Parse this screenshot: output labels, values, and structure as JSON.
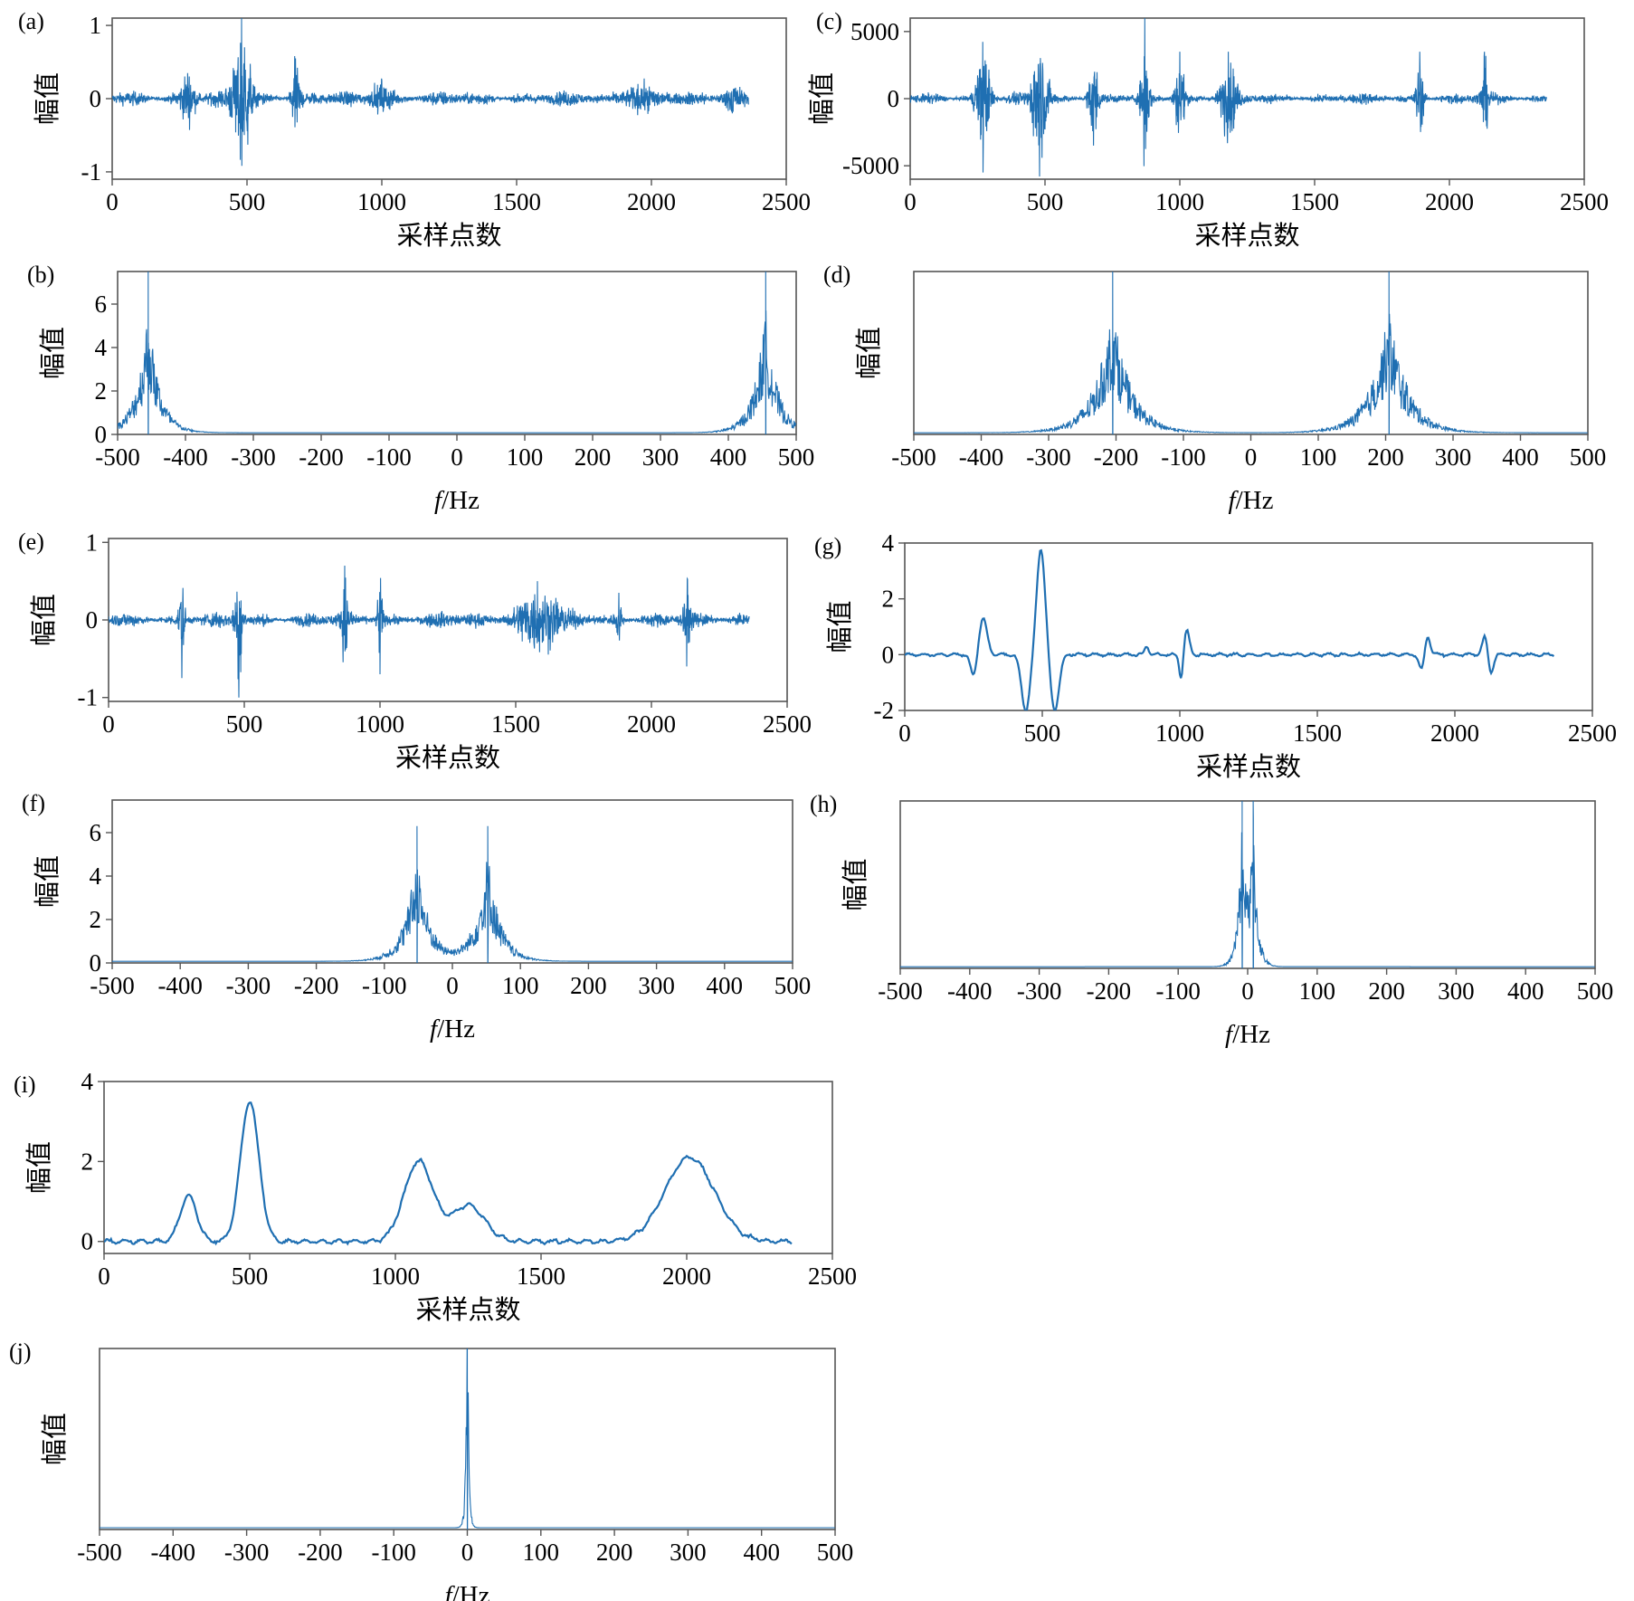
{
  "figure": {
    "line_color": "#1f6fb2",
    "frame_color": "#555555"
  },
  "chart_data": [
    {
      "id": "a",
      "panel_label": "(a)",
      "type": "line",
      "domain": "time",
      "xlabel": "采样点数",
      "ylabel": "幅值",
      "xlim": [
        0,
        2500
      ],
      "ylim": [
        -1.1,
        1.1
      ],
      "xticks": [
        "0",
        "500",
        "1000",
        "1500",
        "2000",
        "2500"
      ],
      "yticks": [
        "-1",
        "0",
        "1"
      ],
      "ytick_values": [
        -1,
        0,
        1
      ],
      "signal_length": 2360,
      "noise_amplitude": 0.1,
      "events": [
        {
          "x": 280,
          "amp": 0.35,
          "width": 30
        },
        {
          "x": 480,
          "amp": 1.1,
          "width": 35
        },
        {
          "x": 680,
          "amp": 0.55,
          "width": 18
        },
        {
          "x": 1000,
          "amp": 0.25,
          "width": 40
        },
        {
          "x": 1950,
          "amp": 0.2,
          "width": 60
        },
        {
          "x": 2300,
          "amp": 0.2,
          "width": 40
        }
      ]
    },
    {
      "id": "b",
      "panel_label": "(b)",
      "type": "line",
      "domain": "spectrum",
      "xlabel_italic": "f",
      "xlabel_rest": "/Hz",
      "ylabel": "幅值",
      "xlim": [
        -500,
        500
      ],
      "ylim": [
        0,
        7.5
      ],
      "xticks": [
        "-500",
        "-400",
        "-300",
        "-200",
        "-100",
        "0",
        "100",
        "200",
        "300",
        "400",
        "500"
      ],
      "yticks": [
        "0",
        "2",
        "4",
        "6"
      ],
      "ytick_values": [
        0,
        2,
        4,
        6
      ],
      "peaks": [
        {
          "f": 455,
          "amp": 4.5,
          "width": 28,
          "spike": 7.5
        }
      ]
    },
    {
      "id": "c",
      "panel_label": "(c)",
      "type": "line",
      "domain": "time",
      "xlabel": "采样点数",
      "ylabel": "幅值",
      "xlim": [
        0,
        2500
      ],
      "ylim": [
        -6000,
        6000
      ],
      "xticks": [
        "0",
        "500",
        "1000",
        "1500",
        "2000",
        "2500"
      ],
      "yticks": [
        "-5000",
        "0",
        "5000"
      ],
      "ytick_values": [
        -5000,
        0,
        5000
      ],
      "signal_length": 2360,
      "noise_amplitude": 400,
      "events": [
        {
          "x": 270,
          "amp": 5500,
          "width": 25
        },
        {
          "x": 480,
          "amp": 5800,
          "width": 30
        },
        {
          "x": 680,
          "amp": 3500,
          "width": 20
        },
        {
          "x": 870,
          "amp": 6000,
          "width": 15
        },
        {
          "x": 1000,
          "amp": 3500,
          "width": 20
        },
        {
          "x": 1180,
          "amp": 3500,
          "width": 30
        },
        {
          "x": 1890,
          "amp": 3500,
          "width": 15
        },
        {
          "x": 2130,
          "amp": 3500,
          "width": 15
        }
      ]
    },
    {
      "id": "d",
      "panel_label": "(d)",
      "type": "line",
      "domain": "spectrum",
      "xlabel_italic": "f",
      "xlabel_rest": "/Hz",
      "ylabel": "幅值",
      "xlim": [
        -500,
        500
      ],
      "ylim": [
        0,
        1
      ],
      "xticks": [
        "-500",
        "-400",
        "-300",
        "-200",
        "-100",
        "0",
        "100",
        "200",
        "300",
        "400",
        "500"
      ],
      "yticks": [],
      "ytick_values": [],
      "peaks": [
        {
          "f": 205,
          "amp": 0.6,
          "width": 45,
          "spike": 1.0
        }
      ]
    },
    {
      "id": "e",
      "panel_label": "(e)",
      "type": "line",
      "domain": "time",
      "xlabel": "采样点数",
      "ylabel": "幅值",
      "xlim": [
        0,
        2500
      ],
      "ylim": [
        -1.05,
        1.05
      ],
      "xticks": [
        "0",
        "500",
        "1000",
        "1500",
        "2000",
        "2500"
      ],
      "yticks": [
        "-1",
        "0",
        "1"
      ],
      "ytick_values": [
        -1,
        0,
        1
      ],
      "signal_length": 2360,
      "noise_amplitude": 0.1,
      "events": [
        {
          "x": 270,
          "amp": 0.75,
          "width": 10
        },
        {
          "x": 480,
          "amp": 1.0,
          "width": 14
        },
        {
          "x": 870,
          "amp": 0.7,
          "width": 10
        },
        {
          "x": 1000,
          "amp": 0.7,
          "width": 10
        },
        {
          "x": 1580,
          "amp": 0.5,
          "width": 80
        },
        {
          "x": 1880,
          "amp": 0.35,
          "width": 10
        },
        {
          "x": 2130,
          "amp": 0.6,
          "width": 10
        }
      ]
    },
    {
      "id": "f",
      "panel_label": "(f)",
      "type": "line",
      "domain": "spectrum",
      "xlabel_italic": "f",
      "xlabel_rest": "/Hz",
      "ylabel": "幅值",
      "xlim": [
        -500,
        500
      ],
      "ylim": [
        0,
        7.5
      ],
      "xticks": [
        "-500",
        "-400",
        "-300",
        "-200",
        "-100",
        "0",
        "100",
        "200",
        "300",
        "400",
        "500"
      ],
      "yticks": [
        "0",
        "2",
        "4",
        "6"
      ],
      "ytick_values": [
        0,
        2,
        4,
        6
      ],
      "peaks": [
        {
          "f": 52,
          "amp": 4.0,
          "width": 30,
          "spike": 6.3
        }
      ]
    },
    {
      "id": "g",
      "panel_label": "(g)",
      "type": "line",
      "domain": "smooth",
      "xlabel": "采样点数",
      "ylabel": "幅值",
      "xlim": [
        0,
        2500
      ],
      "ylim": [
        -2,
        4
      ],
      "xticks": [
        "0",
        "500",
        "1000",
        "1500",
        "2000",
        "2500"
      ],
      "yticks": [
        "-2",
        "0",
        "2",
        "4"
      ],
      "ytick_values": [
        -2,
        0,
        2,
        4
      ],
      "signal_length": 2360,
      "bumps": [
        {
          "x": 250,
          "amp": -0.8,
          "width": 15
        },
        {
          "x": 285,
          "amp": 1.3,
          "width": 20
        },
        {
          "x": 440,
          "amp": -2.0,
          "width": 22
        },
        {
          "x": 495,
          "amp": 3.8,
          "width": 22
        },
        {
          "x": 545,
          "amp": -2.0,
          "width": 22
        },
        {
          "x": 880,
          "amp": 0.3,
          "width": 10
        },
        {
          "x": 1005,
          "amp": -0.9,
          "width": 10
        },
        {
          "x": 1025,
          "amp": 0.9,
          "width": 14
        },
        {
          "x": 1880,
          "amp": -0.6,
          "width": 14
        },
        {
          "x": 1900,
          "amp": 0.7,
          "width": 14
        },
        {
          "x": 2110,
          "amp": 0.7,
          "width": 14
        },
        {
          "x": 2130,
          "amp": -0.7,
          "width": 14
        }
      ]
    },
    {
      "id": "h",
      "panel_label": "(h)",
      "type": "line",
      "domain": "spectrum",
      "xlabel_italic": "f",
      "xlabel_rest": "/Hz",
      "ylabel": "幅值",
      "xlim": [
        -500,
        500
      ],
      "ylim": [
        0,
        1
      ],
      "xticks": [
        "-500",
        "-400",
        "-300",
        "-200",
        "-100",
        "0",
        "100",
        "200",
        "300",
        "400",
        "500"
      ],
      "yticks": [],
      "ytick_values": [],
      "peaks": [
        {
          "f": 8,
          "amp": 0.7,
          "width": 10,
          "spike": 1.0
        }
      ]
    },
    {
      "id": "i",
      "panel_label": "(i)",
      "type": "line",
      "domain": "smooth",
      "xlabel": "采样点数",
      "ylabel": "幅值",
      "xlim": [
        0,
        2500
      ],
      "ylim": [
        -0.3,
        4
      ],
      "xticks": [
        "0",
        "500",
        "1000",
        "1500",
        "2000",
        "2500"
      ],
      "yticks": [
        "0",
        "2",
        "4"
      ],
      "ytick_values": [
        0,
        2,
        4
      ],
      "signal_length": 2360,
      "bumps": [
        {
          "x": 290,
          "amp": 1.15,
          "width": 40
        },
        {
          "x": 500,
          "amp": 3.5,
          "width": 45
        },
        {
          "x": 1080,
          "amp": 2.0,
          "width": 70
        },
        {
          "x": 1250,
          "amp": 0.9,
          "width": 80
        },
        {
          "x": 2010,
          "amp": 2.1,
          "width": 120
        }
      ]
    },
    {
      "id": "j",
      "panel_label": "(j)",
      "type": "line",
      "domain": "spectrum",
      "xlabel_italic": "f",
      "xlabel_rest": "/Hz",
      "ylabel": "幅值",
      "xlim": [
        -500,
        500
      ],
      "ylim": [
        0,
        1
      ],
      "xticks": [
        "-500",
        "-400",
        "-300",
        "-200",
        "-100",
        "0",
        "100",
        "200",
        "300",
        "400",
        "500"
      ],
      "yticks": [],
      "ytick_values": [],
      "peaks": [
        {
          "f": 0,
          "amp": 0.7,
          "width": 3,
          "spike": 1.0
        }
      ]
    }
  ]
}
